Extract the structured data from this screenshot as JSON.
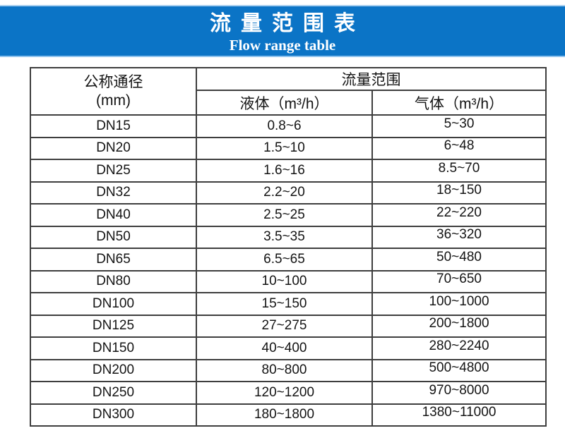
{
  "banner": {
    "title": "流量范围表",
    "subtitle": "Flow range table"
  },
  "table": {
    "col1_header_line1": "公称通径",
    "col1_header_line2": "(mm)",
    "group_header": "流量范围",
    "col2_header": "液体（m³/h）",
    "col3_header": "气体（m³/h）",
    "rows": [
      {
        "dn": "DN15",
        "liquid": "0.8~6",
        "gas": "5~30"
      },
      {
        "dn": "DN20",
        "liquid": "1.5~10",
        "gas": "6~48"
      },
      {
        "dn": "DN25",
        "liquid": "1.6~16",
        "gas": "8.5~70"
      },
      {
        "dn": "DN32",
        "liquid": "2.2~20",
        "gas": "18~150"
      },
      {
        "dn": "DN40",
        "liquid": "2.5~25",
        "gas": "22~220"
      },
      {
        "dn": "DN50",
        "liquid": "3.5~35",
        "gas": "36~320"
      },
      {
        "dn": "DN65",
        "liquid": "6.5~65",
        "gas": "50~480"
      },
      {
        "dn": "DN80",
        "liquid": "10~100",
        "gas": "70~650"
      },
      {
        "dn": "DN100",
        "liquid": "15~150",
        "gas": "100~1000"
      },
      {
        "dn": "DN125",
        "liquid": "27~275",
        "gas": "200~1800"
      },
      {
        "dn": "DN150",
        "liquid": "40~400",
        "gas": "280~2240"
      },
      {
        "dn": "DN200",
        "liquid": "80~800",
        "gas": "500~4800"
      },
      {
        "dn": "DN250",
        "liquid": "120~1200",
        "gas": "970~8000"
      },
      {
        "dn": "DN300",
        "liquid": "180~1800",
        "gas": "1380~11000"
      }
    ]
  },
  "colors": {
    "banner_bg": "#0b74c6",
    "banner_edge": "#8fc3ee",
    "banner_text": "#ffffff",
    "table_border": "#3e3e3e",
    "table_text": "#141414"
  }
}
